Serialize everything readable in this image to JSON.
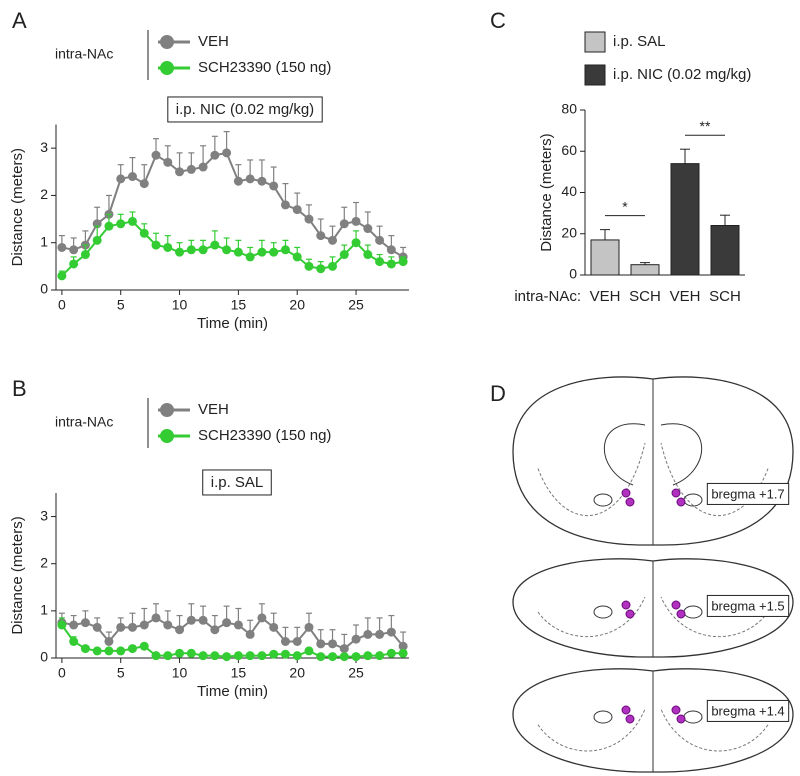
{
  "chart_data": [
    {
      "type": "line",
      "panel": "A",
      "legend_title": "intra-NAc",
      "annotation": "i.p. NIC (0.02 mg/kg)",
      "xlabel": "Time (min)",
      "ylabel": "Distance (meters)",
      "x": [
        0,
        1,
        2,
        3,
        4,
        5,
        6,
        7,
        8,
        9,
        10,
        11,
        12,
        13,
        14,
        15,
        16,
        17,
        18,
        19,
        20,
        21,
        22,
        23,
        24,
        25,
        26,
        27,
        28,
        29
      ],
      "xlim": [
        -0.5,
        29.5
      ],
      "xticks": [
        0,
        5,
        10,
        15,
        20,
        25
      ],
      "ylim": [
        0,
        3.5
      ],
      "yticks": [
        0,
        1,
        2,
        3
      ],
      "series": [
        {
          "name": "VEH",
          "color": "#808080",
          "values": [
            0.9,
            0.85,
            0.95,
            1.4,
            1.6,
            2.35,
            2.4,
            2.25,
            2.85,
            2.7,
            2.5,
            2.55,
            2.6,
            2.85,
            2.9,
            2.3,
            2.35,
            2.3,
            2.2,
            1.8,
            1.7,
            1.5,
            1.15,
            1.05,
            1.4,
            1.45,
            1.3,
            1.05,
            0.85,
            0.7
          ],
          "errors": [
            0.25,
            0.25,
            0.3,
            0.35,
            0.4,
            0.3,
            0.4,
            0.4,
            0.35,
            0.35,
            0.4,
            0.35,
            0.45,
            0.4,
            0.45,
            0.35,
            0.4,
            0.45,
            0.4,
            0.45,
            0.35,
            0.3,
            0.35,
            0.3,
            0.35,
            0.4,
            0.35,
            0.3,
            0.3,
            0.2
          ]
        },
        {
          "name": "SCH23390 (150 ng)",
          "color": "#33cc33",
          "values": [
            0.3,
            0.55,
            0.75,
            1.05,
            1.35,
            1.4,
            1.45,
            1.2,
            0.95,
            0.9,
            0.8,
            0.85,
            0.85,
            0.95,
            0.85,
            0.8,
            0.7,
            0.8,
            0.8,
            0.85,
            0.7,
            0.5,
            0.45,
            0.5,
            0.75,
            1.0,
            0.75,
            0.6,
            0.55,
            0.6
          ],
          "errors": [
            0.1,
            0.15,
            0.2,
            0.3,
            0.25,
            0.2,
            0.2,
            0.2,
            0.25,
            0.25,
            0.2,
            0.2,
            0.2,
            0.3,
            0.25,
            0.25,
            0.2,
            0.25,
            0.2,
            0.2,
            0.2,
            0.15,
            0.15,
            0.2,
            0.2,
            0.25,
            0.2,
            0.15,
            0.15,
            0.1
          ]
        }
      ]
    },
    {
      "type": "line",
      "panel": "B",
      "legend_title": "intra-NAc",
      "annotation": "i.p. SAL",
      "xlabel": "Time (min)",
      "ylabel": "Distance (meters)",
      "x": [
        0,
        1,
        2,
        3,
        4,
        5,
        6,
        7,
        8,
        9,
        10,
        11,
        12,
        13,
        14,
        15,
        16,
        17,
        18,
        19,
        20,
        21,
        22,
        23,
        24,
        25,
        26,
        27,
        28,
        29
      ],
      "xlim": [
        -0.5,
        29.5
      ],
      "xticks": [
        0,
        5,
        10,
        15,
        20,
        25
      ],
      "ylim": [
        0,
        3.5
      ],
      "yticks": [
        0,
        1,
        2,
        3
      ],
      "series": [
        {
          "name": "VEH",
          "color": "#808080",
          "values": [
            0.75,
            0.7,
            0.75,
            0.65,
            0.35,
            0.65,
            0.65,
            0.7,
            0.85,
            0.7,
            0.6,
            0.8,
            0.8,
            0.6,
            0.75,
            0.7,
            0.5,
            0.85,
            0.65,
            0.35,
            0.35,
            0.65,
            0.3,
            0.3,
            0.2,
            0.4,
            0.5,
            0.5,
            0.55,
            0.25
          ],
          "errors": [
            0.2,
            0.2,
            0.25,
            0.2,
            0.2,
            0.2,
            0.3,
            0.35,
            0.3,
            0.3,
            0.3,
            0.35,
            0.3,
            0.3,
            0.35,
            0.35,
            0.3,
            0.3,
            0.3,
            0.3,
            0.3,
            0.3,
            0.3,
            0.3,
            0.3,
            0.3,
            0.35,
            0.35,
            0.35,
            0.3
          ]
        },
        {
          "name": "SCH23390 (150 ng)",
          "color": "#33cc33",
          "values": [
            0.7,
            0.35,
            0.2,
            0.15,
            0.15,
            0.15,
            0.2,
            0.25,
            0.05,
            0.05,
            0.1,
            0.1,
            0.05,
            0.05,
            0.03,
            0.05,
            0.05,
            0.05,
            0.08,
            0.08,
            0.05,
            0.15,
            0.03,
            0.03,
            0.03,
            0.03,
            0.05,
            0.05,
            0.1,
            0.1
          ],
          "errors": [
            0.15,
            0.1,
            0.05,
            0.05,
            0.05,
            0.05,
            0.05,
            0.05,
            0.03,
            0.03,
            0.03,
            0.03,
            0.03,
            0.03,
            0.03,
            0.03,
            0.03,
            0.03,
            0.03,
            0.03,
            0.03,
            0.03,
            0.03,
            0.03,
            0.03,
            0.03,
            0.03,
            0.03,
            0.05,
            0.05
          ]
        }
      ]
    },
    {
      "type": "bar",
      "panel": "C",
      "xlabel": "intra-NAc:",
      "ylabel": "Distance (meters)",
      "categories": [
        "VEH",
        "SCH",
        "VEH",
        "SCH"
      ],
      "ylim": [
        0,
        80
      ],
      "yticks": [
        0,
        20,
        40,
        60,
        80
      ],
      "annotations": [
        "*",
        "**"
      ],
      "series": [
        {
          "name": "i.p. SAL",
          "color": "#c4c4c4",
          "values": [
            17,
            5,
            null,
            null
          ],
          "errors": [
            5,
            1,
            null,
            null
          ]
        },
        {
          "name": "i.p. NIC (0.02 mg/kg)",
          "color": "#3a3a3a",
          "values": [
            null,
            null,
            54,
            24
          ],
          "errors": [
            null,
            null,
            7,
            5
          ]
        }
      ]
    }
  ],
  "diagram": {
    "panel": "D",
    "sections": [
      "bregma +1.7",
      "bregma +1.5",
      "bregma +1.4"
    ]
  }
}
